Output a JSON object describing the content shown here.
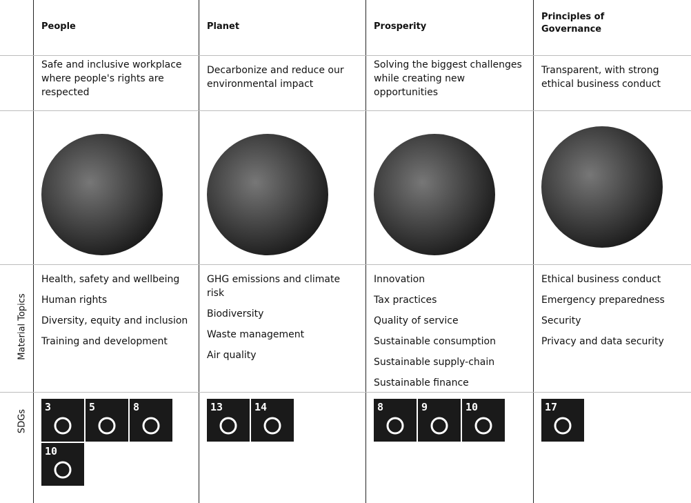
{
  "row_labels": {
    "topics": "Material Topics",
    "sdgs": "SDGs"
  },
  "columns": [
    {
      "title": "People",
      "description": "Safe and inclusive workplace where people's rights are respected",
      "topics": [
        "Health, safety and wellbeing",
        "Human rights",
        "Diversity, equity and inclusion",
        "Training and development"
      ],
      "sdgs": [
        3,
        5,
        8,
        10
      ]
    },
    {
      "title": "Planet",
      "description": "Decarbonize and reduce our environmental impact",
      "topics": [
        "GHG emissions and climate risk",
        "Biodiversity",
        "Waste management",
        "Air quality"
      ],
      "sdgs": [
        13,
        14
      ]
    },
    {
      "title": "Prosperity",
      "description": "Solving the biggest challenges while creating new opportunities",
      "topics": [
        "Innovation",
        "Tax practices",
        "Quality of service",
        "Sustainable consumption",
        "Sustainable supply-chain",
        "Sustainable finance"
      ],
      "sdgs": [
        8,
        9,
        10
      ]
    },
    {
      "title": "Principles of Governance",
      "description": "Transparent, with strong ethical business conduct",
      "topics": [
        "Ethical business conduct",
        "Emergency preparedness",
        "Security",
        "Privacy and data security"
      ],
      "sdgs": [
        17
      ]
    }
  ]
}
